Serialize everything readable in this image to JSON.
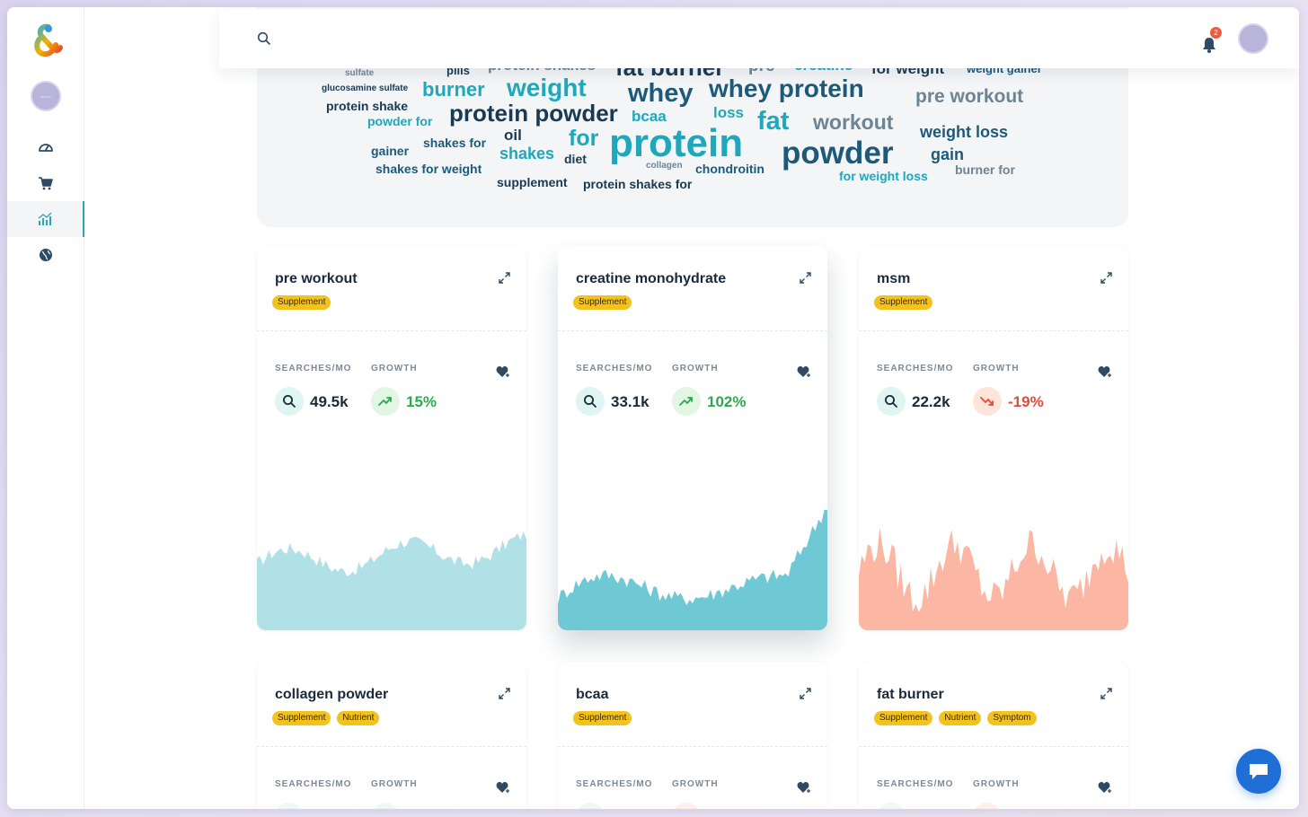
{
  "header": {
    "search_placeholder": "",
    "notification_count": "2"
  },
  "colors": {
    "accent": "#28a8b9",
    "tag": "#f4c21c",
    "growth_up": "#2da94f",
    "growth_down": "#e44a3a",
    "chart_up": "#6fc9d5",
    "chart_down": "#fbb7a3"
  },
  "sidebar": {
    "items": [
      {
        "icon": "dashboard-gauge-icon"
      },
      {
        "icon": "shopping-cart-icon"
      },
      {
        "icon": "trends-chart-icon",
        "active": true
      },
      {
        "icon": "globe-icon"
      }
    ]
  },
  "word_cloud": {
    "words": [
      "sulfate",
      "pills",
      "protein shakes",
      "fat burner",
      "pre",
      "creatine",
      "for weight",
      "weight gainer",
      "glucosamine sulfate",
      "burner",
      "weight",
      "whey",
      "whey protein",
      "pre workout",
      "protein shake",
      "protein powder",
      "bcaa",
      "loss",
      "powder for",
      "fat",
      "workout",
      "oil",
      "for",
      "protein",
      "weight loss",
      "shakes for",
      "gainer",
      "shakes",
      "diet",
      "powder",
      "gain",
      "collagen",
      "shakes for weight",
      "chondroitin",
      "burner for",
      "for weight loss",
      "supplement",
      "protein shakes for"
    ]
  },
  "labels": {
    "searches": "SEARCHES/MO",
    "growth": "GROWTH"
  },
  "cards": [
    {
      "title": "pre workout",
      "tags": [
        "Supplement"
      ],
      "searches": "49.5k",
      "growth": "15%",
      "trend": "up"
    },
    {
      "title": "creatine monohydrate",
      "tags": [
        "Supplement"
      ],
      "searches": "33.1k",
      "growth": "102%",
      "trend": "up"
    },
    {
      "title": "msm",
      "tags": [
        "Supplement"
      ],
      "searches": "22.2k",
      "growth": "-19%",
      "trend": "down"
    },
    {
      "title": "collagen powder",
      "tags": [
        "Supplement",
        "Nutrient"
      ]
    },
    {
      "title": "bcaa",
      "tags": [
        "Supplement"
      ]
    },
    {
      "title": "fat burner",
      "tags": [
        "Supplement",
        "Nutrient",
        "Symptom"
      ]
    }
  ]
}
